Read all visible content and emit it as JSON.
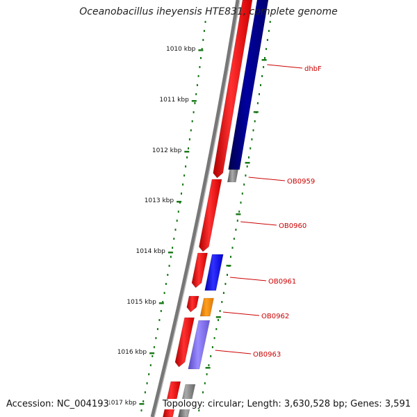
{
  "title": "Oceanobacillus iheyensis HTE831, complete genome",
  "accession": "Accession: NC_004193",
  "topology": "Topology: circular; Length: 3,630,528 bp; Genes: 3,591",
  "ticks": [
    "1010 kbp",
    "1011 kbp",
    "1012 kbp",
    "1013 kbp",
    "1014 kbp",
    "1015 kbp",
    "1016 kbp",
    "1017 kbp"
  ],
  "gene_labels": [
    "dhbF",
    "OB0959",
    "OB0960",
    "OB0961",
    "OB0962",
    "OB0963"
  ],
  "colors": {
    "cds": "#ff0000",
    "dark_blue": "#00007a",
    "blue": "#0000ff",
    "orange": "#ff8c00",
    "purple": "#7b68ee",
    "backbone": "#777777",
    "gray": "#888888",
    "tick": "#1a7a1a",
    "label": "#cc0000"
  }
}
